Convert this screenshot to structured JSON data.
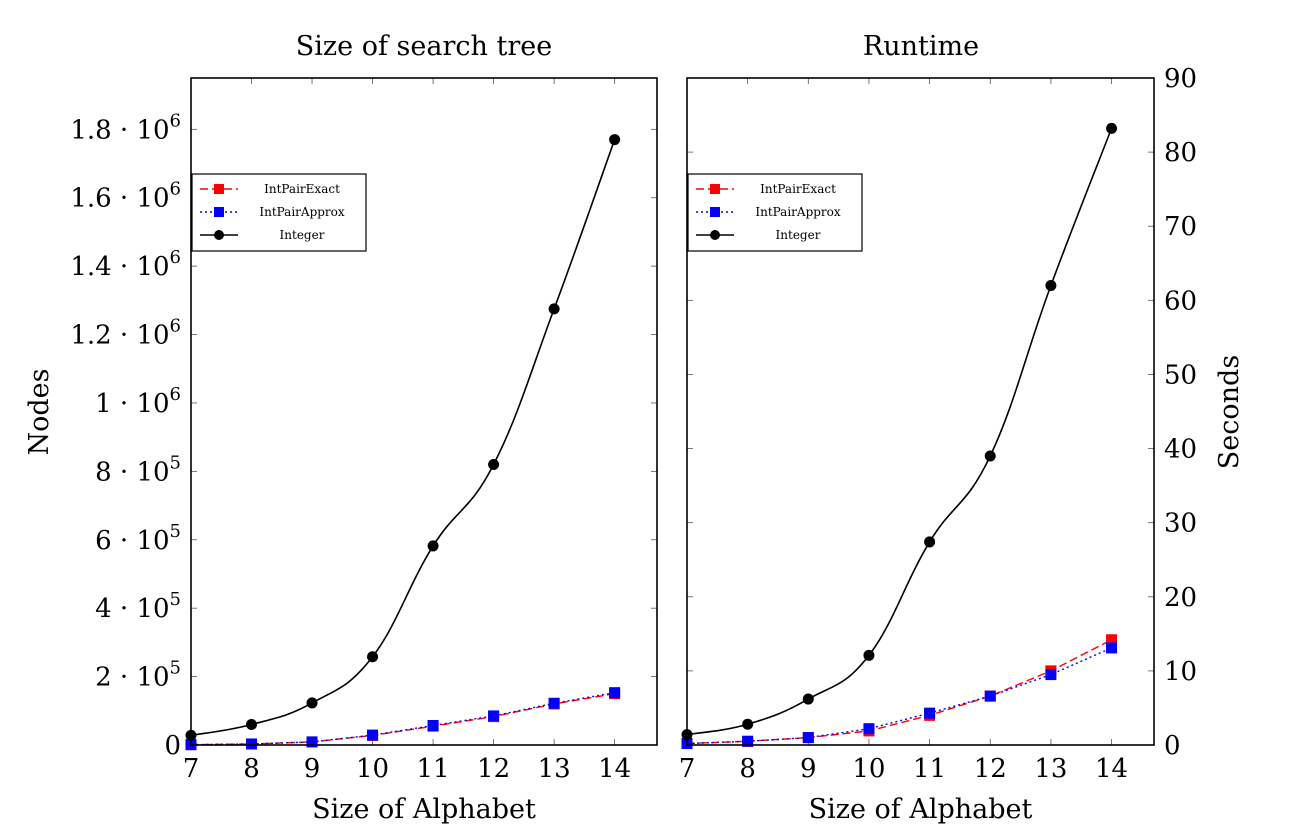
{
  "chart_data": [
    {
      "type": "line",
      "title": "Size of search tree",
      "xlabel": "Size of Alphabet",
      "ylabel": "Nodes",
      "x": [
        7,
        8,
        9,
        10,
        11,
        12,
        13,
        14
      ],
      "xlim": [
        7,
        14.7
      ],
      "ylim": [
        0,
        1950000
      ],
      "xticks": [
        7,
        8,
        9,
        10,
        11,
        12,
        13,
        14
      ],
      "yticks": [
        {
          "value": 0,
          "base": "0",
          "exp": ""
        },
        {
          "value": 200000,
          "base": "2 · 10",
          "exp": "5"
        },
        {
          "value": 400000,
          "base": "4 · 10",
          "exp": "5"
        },
        {
          "value": 600000,
          "base": "6 · 10",
          "exp": "5"
        },
        {
          "value": 800000,
          "base": "8 · 10",
          "exp": "5"
        },
        {
          "value": 1000000,
          "base": "1 · 10",
          "exp": "6"
        },
        {
          "value": 1200000,
          "base": "1.2 · 10",
          "exp": "6"
        },
        {
          "value": 1400000,
          "base": "1.4 · 10",
          "exp": "6"
        },
        {
          "value": 1600000,
          "base": "1.6 · 10",
          "exp": "6"
        },
        {
          "value": 1800000,
          "base": "1.8 · 10",
          "exp": "6"
        }
      ],
      "y_axis_side": "left",
      "legend_position": "upper-left",
      "series": [
        {
          "name": "IntPairExact",
          "color": "#ff0000",
          "marker": "square",
          "dash": "dashed",
          "smooth": false,
          "values": [
            1000,
            3000,
            9000,
            28000,
            55000,
            83000,
            120000,
            150000
          ]
        },
        {
          "name": "IntPairApprox",
          "color": "#0000ff",
          "marker": "square",
          "dash": "dotted",
          "smooth": false,
          "values": [
            1000,
            3000,
            9000,
            29000,
            57000,
            85000,
            122000,
            153000
          ]
        },
        {
          "name": "Integer",
          "color": "#000000",
          "marker": "circle",
          "dash": "solid",
          "smooth": true,
          "values": [
            28000,
            60000,
            123000,
            258000,
            582000,
            820000,
            1275000,
            1770000
          ]
        }
      ]
    },
    {
      "type": "line",
      "title": "Runtime",
      "xlabel": "Size of Alphabet",
      "ylabel": "Seconds",
      "x": [
        7,
        8,
        9,
        10,
        11,
        12,
        13,
        14
      ],
      "xlim": [
        7,
        14.7
      ],
      "ylim": [
        0,
        90
      ],
      "xticks": [
        7,
        8,
        9,
        10,
        11,
        12,
        13,
        14
      ],
      "yticks": [
        {
          "value": 0,
          "base": "0",
          "exp": ""
        },
        {
          "value": 10,
          "base": "10",
          "exp": ""
        },
        {
          "value": 20,
          "base": "20",
          "exp": ""
        },
        {
          "value": 30,
          "base": "30",
          "exp": ""
        },
        {
          "value": 40,
          "base": "40",
          "exp": ""
        },
        {
          "value": 50,
          "base": "50",
          "exp": ""
        },
        {
          "value": 60,
          "base": "60",
          "exp": ""
        },
        {
          "value": 70,
          "base": "70",
          "exp": ""
        },
        {
          "value": 80,
          "base": "80",
          "exp": ""
        },
        {
          "value": 90,
          "base": "90",
          "exp": ""
        }
      ],
      "y_axis_side": "right",
      "legend_position": "upper-left",
      "series": [
        {
          "name": "IntPairExact",
          "color": "#ff0000",
          "marker": "square",
          "dash": "dashed",
          "smooth": false,
          "values": [
            0.2,
            0.5,
            1.0,
            1.9,
            4.0,
            6.6,
            10.0,
            14.2
          ]
        },
        {
          "name": "IntPairApprox",
          "color": "#0000ff",
          "marker": "square",
          "dash": "dotted",
          "smooth": false,
          "values": [
            0.2,
            0.5,
            1.0,
            2.2,
            4.3,
            6.6,
            9.5,
            13.1
          ]
        },
        {
          "name": "Integer",
          "color": "#000000",
          "marker": "circle",
          "dash": "solid",
          "smooth": true,
          "values": [
            1.4,
            2.8,
            6.2,
            12.1,
            27.4,
            39.0,
            62.0,
            83.2
          ]
        }
      ]
    }
  ]
}
